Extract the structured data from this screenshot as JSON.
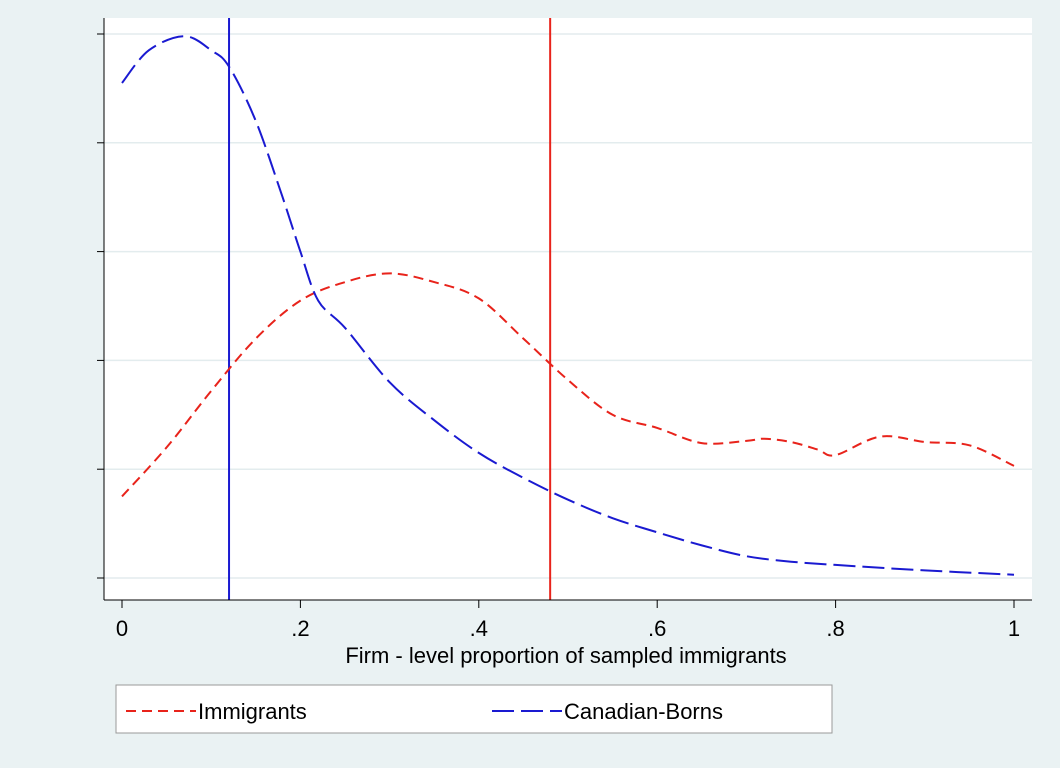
{
  "chart_data": {
    "type": "line",
    "xlabel": "Firm - level proportion of sampled immigrants",
    "ylabel": "",
    "xlim": [
      0,
      1
    ],
    "ylim": [
      0,
      5
    ],
    "y_tick_labels_shown": false,
    "grid": "horizontal",
    "x_ticks": [
      {
        "value": 0,
        "label": "0"
      },
      {
        "value": 0.2,
        "label": ".2"
      },
      {
        "value": 0.4,
        "label": ".4"
      },
      {
        "value": 0.6,
        "label": ".6"
      },
      {
        "value": 0.8,
        "label": ".8"
      },
      {
        "value": 1,
        "label": "1"
      }
    ],
    "y_gridlines": [
      0,
      1,
      2,
      3,
      4,
      5
    ],
    "legend_position": "bottom",
    "series": [
      {
        "name": "Immigrants",
        "color": "#e8231b",
        "dash": "medium",
        "x": [
          0,
          0.05,
          0.1,
          0.15,
          0.2,
          0.25,
          0.3,
          0.35,
          0.4,
          0.45,
          0.5,
          0.55,
          0.6,
          0.65,
          0.7,
          0.72,
          0.75,
          0.78,
          0.8,
          0.85,
          0.9,
          0.95,
          1
        ],
        "y": [
          0.75,
          1.2,
          1.72,
          2.2,
          2.55,
          2.72,
          2.8,
          2.72,
          2.57,
          2.2,
          1.82,
          1.5,
          1.38,
          1.24,
          1.26,
          1.28,
          1.25,
          1.18,
          1.13,
          1.3,
          1.25,
          1.22,
          1.03
        ]
      },
      {
        "name": "Canadian-Borns",
        "color": "#1a1ad1",
        "dash": "long",
        "x": [
          0,
          0.03,
          0.07,
          0.1,
          0.12,
          0.15,
          0.18,
          0.2,
          0.22,
          0.25,
          0.3,
          0.35,
          0.4,
          0.45,
          0.5,
          0.55,
          0.6,
          0.65,
          0.7,
          0.75,
          0.8,
          0.9,
          1
        ],
        "y": [
          4.55,
          4.85,
          4.98,
          4.85,
          4.7,
          4.2,
          3.5,
          3.0,
          2.55,
          2.3,
          1.8,
          1.45,
          1.15,
          0.92,
          0.72,
          0.55,
          0.42,
          0.3,
          0.2,
          0.15,
          0.12,
          0.07,
          0.03
        ]
      }
    ],
    "reference_lines": [
      {
        "axis": "x",
        "value": 0.12,
        "color": "#1a1ad1"
      },
      {
        "axis": "x",
        "value": 0.48,
        "color": "#e8231b"
      }
    ]
  }
}
